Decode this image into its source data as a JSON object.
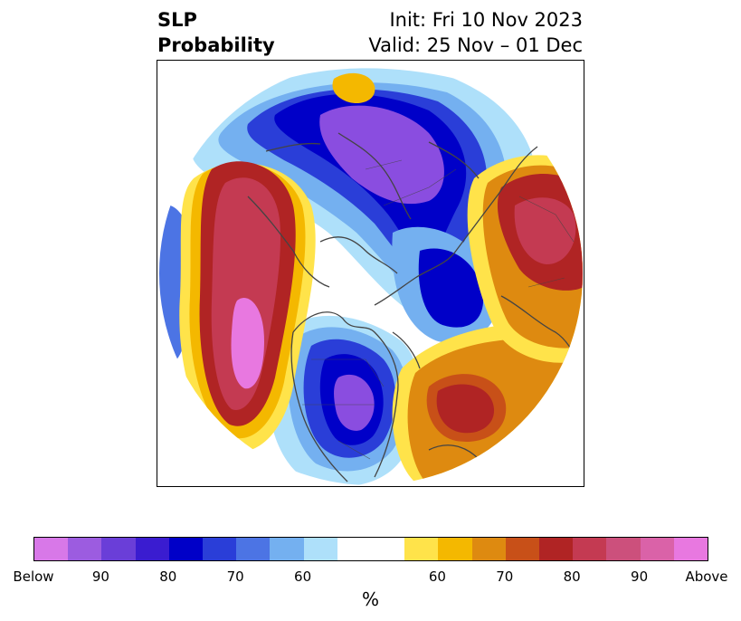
{
  "title": {
    "left_line1": "SLP",
    "left_line2": "Probability",
    "right_line1": "Init: Fri 10 Nov 2023",
    "right_line2": "Valid: 25 Nov – 01 Dec"
  },
  "colorbar": {
    "unit": "%",
    "colors": [
      "#d878e8",
      "#9c5ce0",
      "#6a3ed8",
      "#3a1cd0",
      "#0000c8",
      "#2a3ed8",
      "#4c74e4",
      "#74b0f0",
      "#aee0fa",
      "#ffffff",
      "#ffffff",
      "#ffe34a",
      "#f4b800",
      "#de8a10",
      "#c85018",
      "#b02424",
      "#c43a52",
      "#cc507c",
      "#da62a8",
      "#e878e0"
    ],
    "tick_labels": [
      "Below",
      "90",
      "80",
      "70",
      "60",
      "60",
      "70",
      "80",
      "90",
      "Above"
    ]
  },
  "map": {
    "projection": "north-polar-stereographic",
    "region": "Northern Hemisphere",
    "colors": {
      "below_strong": "#8a4de0",
      "below_deep": "#0000c8",
      "below_mid": "#2a3ed8",
      "below_light": "#74b0f0",
      "below_pale": "#aee0fa",
      "above_pale": "#ffe34a",
      "above_gold": "#f4b800",
      "above_orange": "#de8a10",
      "above_red": "#b02424",
      "above_rose": "#c43a52",
      "above_pink": "#e878e0",
      "coastline": "#444444"
    }
  }
}
